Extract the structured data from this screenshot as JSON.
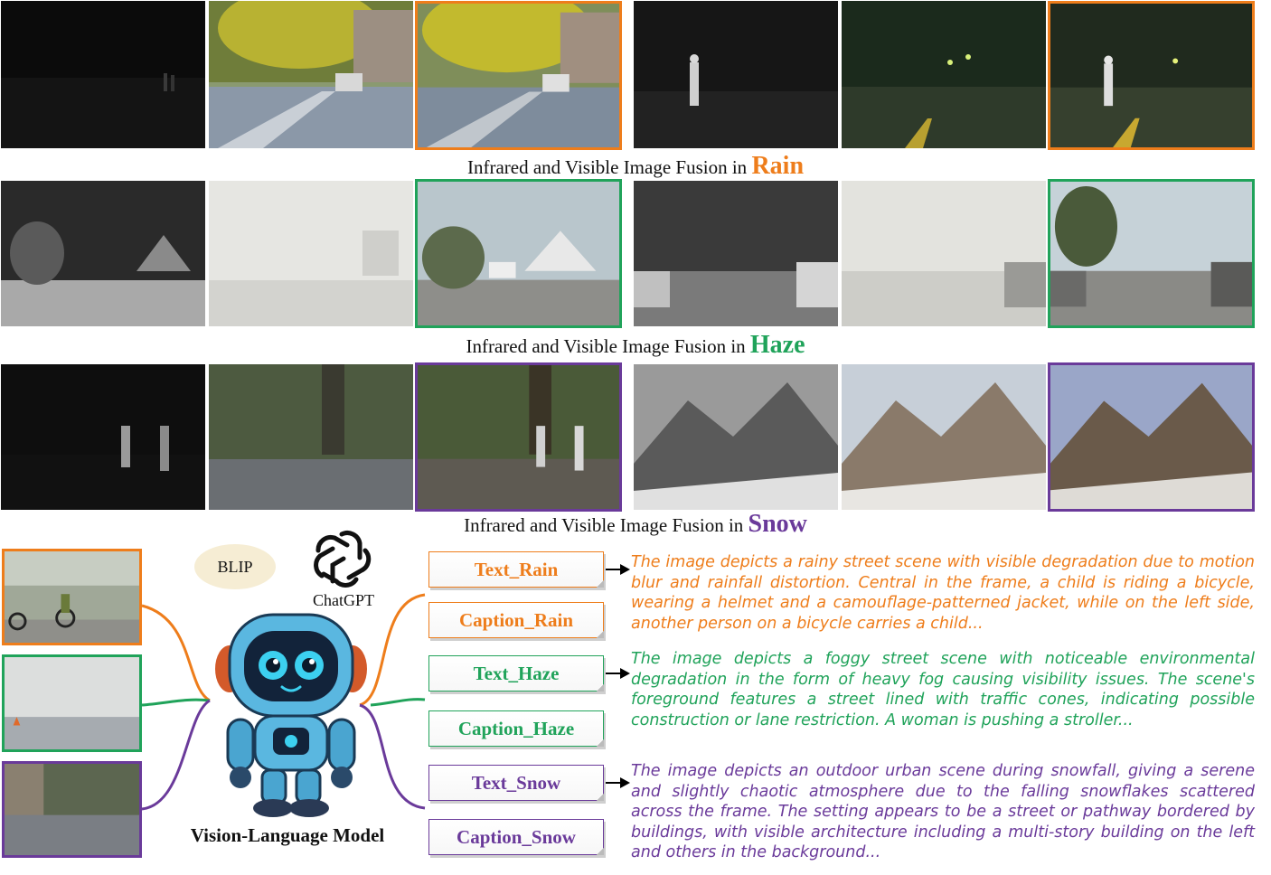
{
  "rows": [
    {
      "prefix": "Infrared and Visible Image Fusion in ",
      "keyword": "Rain"
    },
    {
      "prefix": "Infrared and Visible Image Fusion in ",
      "keyword": "Haze"
    },
    {
      "prefix": "Infrared and Visible Image Fusion in ",
      "keyword": "Snow"
    }
  ],
  "models": {
    "blip": "BLIP",
    "chatgpt": "ChatGPT",
    "vlm": "Vision-Language Model"
  },
  "documents": {
    "text_rain": "Text_Rain",
    "caption_rain": "Caption_Rain",
    "text_haze": "Text_Haze",
    "caption_haze": "Caption_Haze",
    "text_snow": "Text_Snow",
    "caption_snow": "Caption_Snow"
  },
  "descriptions": {
    "rain": "The image depicts a rainy street scene with visible degradation due to motion blur and rainfall distortion. Central in the frame, a child is riding a bicycle, wearing a helmet and a camouflage-patterned jacket, while on the left side, another person on a bicycle carries a child...",
    "haze": "The image depicts a foggy street scene with noticeable environmental degradation in the form of heavy fog causing visibility issues. The scene's foreground features a street lined with traffic cones, indicating possible construction or lane restriction. A woman is pushing a stroller...",
    "snow": "The image depicts an outdoor urban scene during snowfall, giving a serene and slightly chaotic atmosphere due to the falling snowflakes scattered across the frame.  The setting appears to be a street or pathway bordered by buildings, with visible architecture including a multi-story building on the left and others in the background..."
  },
  "colors": {
    "rain": "#ee7d1b",
    "haze": "#20a35a",
    "snow": "#6a3a9a"
  }
}
